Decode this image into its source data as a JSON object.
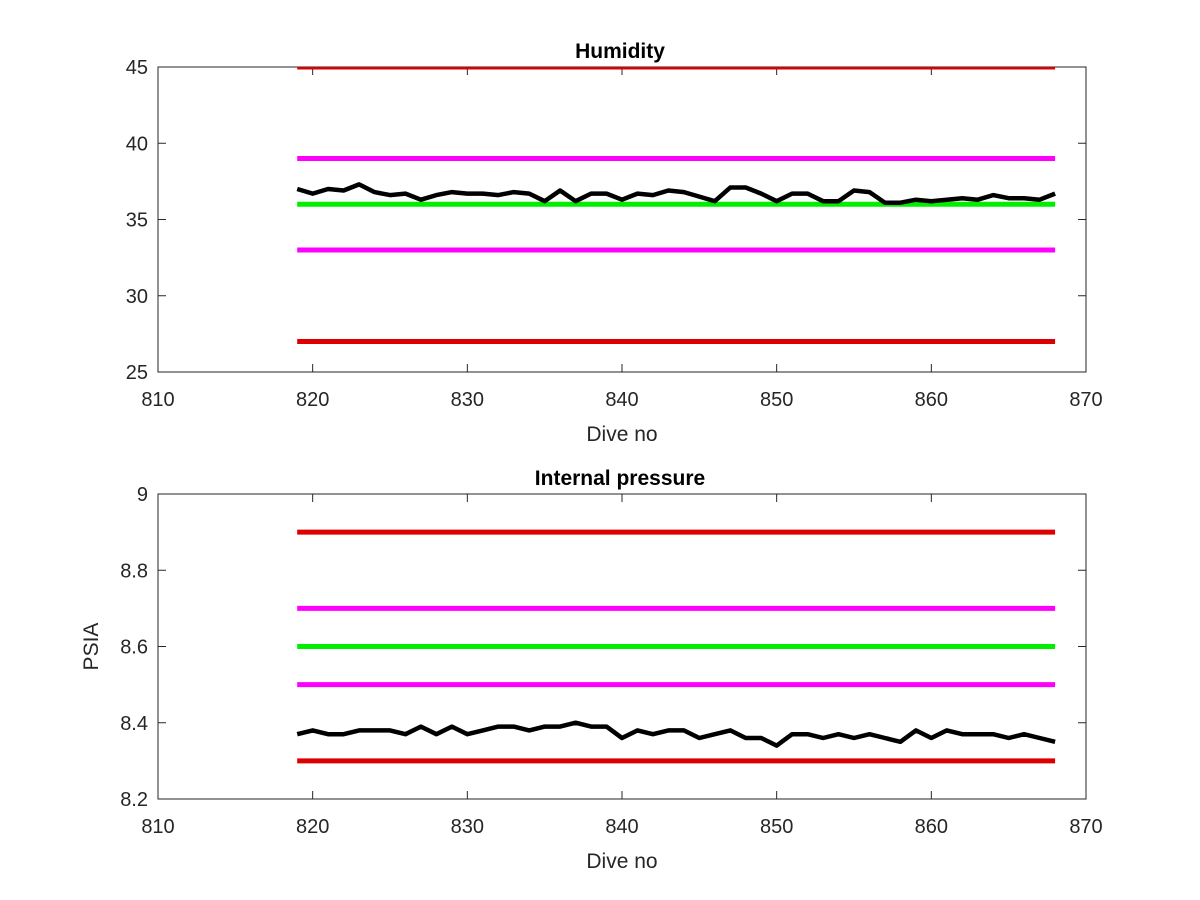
{
  "chart_data": [
    {
      "type": "line",
      "title": "Humidity",
      "xlabel": "Dive no",
      "ylabel": "",
      "xlim": [
        810,
        870
      ],
      "ylim": [
        25,
        45
      ],
      "xticks": [
        810,
        820,
        830,
        840,
        850,
        860,
        870
      ],
      "yticks": [
        25,
        30,
        35,
        40,
        45
      ],
      "xtick_labels": [
        "810",
        "820",
        "830",
        "840",
        "850",
        "860",
        "870"
      ],
      "ytick_labels": [
        "25",
        "30",
        "35",
        "40",
        "45"
      ],
      "grid": false,
      "series": [
        {
          "color": "#dd0000",
          "x": [
            819,
            868
          ],
          "y": [
            45,
            45
          ]
        },
        {
          "color": "#ff00ff",
          "x": [
            819,
            868
          ],
          "y": [
            39,
            39
          ]
        },
        {
          "color": "#00ee00",
          "x": [
            819,
            868
          ],
          "y": [
            36,
            36
          ]
        },
        {
          "color": "#ff00ff",
          "x": [
            819,
            868
          ],
          "y": [
            33,
            33
          ]
        },
        {
          "color": "#dd0000",
          "x": [
            819,
            868
          ],
          "y": [
            27,
            27
          ]
        },
        {
          "color": "#000000",
          "x": [
            819,
            820,
            821,
            822,
            823,
            824,
            825,
            826,
            827,
            828,
            829,
            830,
            831,
            832,
            833,
            834,
            835,
            836,
            837,
            838,
            839,
            840,
            841,
            842,
            843,
            844,
            845,
            846,
            847,
            848,
            849,
            850,
            851,
            852,
            853,
            854,
            855,
            856,
            857,
            858,
            859,
            860,
            861,
            862,
            863,
            864,
            865,
            866,
            867,
            868
          ],
          "y": [
            37.0,
            36.7,
            37.0,
            36.9,
            37.3,
            36.8,
            36.6,
            36.7,
            36.3,
            36.6,
            36.8,
            36.7,
            36.7,
            36.6,
            36.8,
            36.7,
            36.2,
            36.9,
            36.2,
            36.7,
            36.7,
            36.3,
            36.7,
            36.6,
            36.9,
            36.8,
            36.5,
            36.2,
            37.1,
            37.1,
            36.7,
            36.2,
            36.7,
            36.7,
            36.2,
            36.2,
            36.9,
            36.8,
            36.1,
            36.1,
            36.3,
            36.2,
            36.3,
            36.4,
            36.3,
            36.6,
            36.4,
            36.4,
            36.3,
            36.7
          ]
        }
      ]
    },
    {
      "type": "line",
      "title": "Internal pressure",
      "xlabel": "Dive no",
      "ylabel": "PSIA",
      "xlim": [
        810,
        870
      ],
      "ylim": [
        8.2,
        9.0
      ],
      "xticks": [
        810,
        820,
        830,
        840,
        850,
        860,
        870
      ],
      "yticks": [
        8.2,
        8.4,
        8.6,
        8.8,
        9.0
      ],
      "xtick_labels": [
        "810",
        "820",
        "830",
        "840",
        "850",
        "860",
        "870"
      ],
      "ytick_labels": [
        "8.2",
        "8.4",
        "8.6",
        "8.8",
        "9"
      ],
      "grid": false,
      "series": [
        {
          "color": "#dd0000",
          "x": [
            819,
            868
          ],
          "y": [
            8.9,
            8.9
          ]
        },
        {
          "color": "#ff00ff",
          "x": [
            819,
            868
          ],
          "y": [
            8.7,
            8.7
          ]
        },
        {
          "color": "#00ee00",
          "x": [
            819,
            868
          ],
          "y": [
            8.6,
            8.6
          ]
        },
        {
          "color": "#ff00ff",
          "x": [
            819,
            868
          ],
          "y": [
            8.5,
            8.5
          ]
        },
        {
          "color": "#dd0000",
          "x": [
            819,
            868
          ],
          "y": [
            8.3,
            8.3
          ]
        },
        {
          "color": "#000000",
          "x": [
            819,
            820,
            821,
            822,
            823,
            824,
            825,
            826,
            827,
            828,
            829,
            830,
            831,
            832,
            833,
            834,
            835,
            836,
            837,
            838,
            839,
            840,
            841,
            842,
            843,
            844,
            845,
            846,
            847,
            848,
            849,
            850,
            851,
            852,
            853,
            854,
            855,
            856,
            857,
            858,
            859,
            860,
            861,
            862,
            863,
            864,
            865,
            866,
            867,
            868
          ],
          "y": [
            8.37,
            8.38,
            8.37,
            8.37,
            8.38,
            8.38,
            8.38,
            8.37,
            8.39,
            8.37,
            8.39,
            8.37,
            8.38,
            8.39,
            8.39,
            8.38,
            8.39,
            8.39,
            8.4,
            8.39,
            8.39,
            8.36,
            8.38,
            8.37,
            8.38,
            8.38,
            8.36,
            8.37,
            8.38,
            8.36,
            8.36,
            8.34,
            8.37,
            8.37,
            8.36,
            8.37,
            8.36,
            8.37,
            8.36,
            8.35,
            8.38,
            8.36,
            8.38,
            8.37,
            8.37,
            8.37,
            8.36,
            8.37,
            8.36,
            8.35
          ]
        }
      ]
    }
  ]
}
